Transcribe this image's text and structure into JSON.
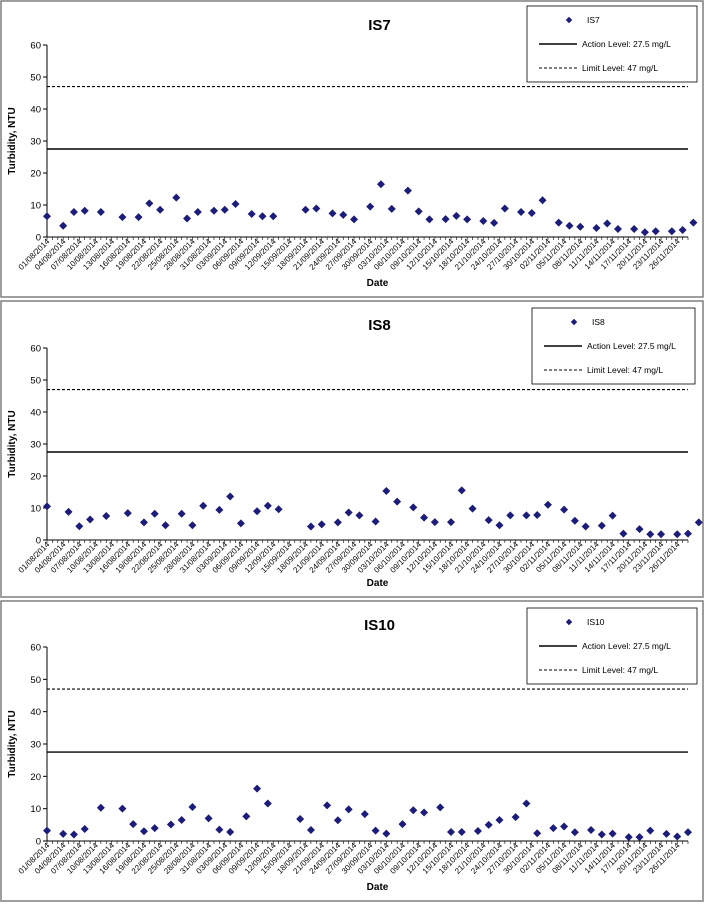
{
  "colors": {
    "marker": "#1c1c7a",
    "line": "#000000",
    "frame": "#7f7f7f",
    "background": "#ffffff"
  },
  "chart_data": [
    {
      "type": "scatter",
      "title": "IS7",
      "xlabel": "Date",
      "ylabel": "Turbidity, NTU",
      "ylim": [
        0,
        60
      ],
      "yticks": [
        0,
        10,
        20,
        30,
        40,
        50,
        60
      ],
      "xlim": [
        "2014-08-01",
        "2014-11-28"
      ],
      "xtick_labels": [
        "01/08/2014",
        "04/08/2014",
        "07/08/2014",
        "10/08/2014",
        "13/08/2014",
        "16/08/2014",
        "19/08/2014",
        "22/08/2014",
        "25/08/2014",
        "28/08/2014",
        "31/08/2014",
        "03/09/2014",
        "06/09/2014",
        "09/09/2014",
        "12/09/2014",
        "15/09/2014",
        "18/09/2014",
        "21/09/2014",
        "24/09/2014",
        "27/09/2014",
        "30/09/2014",
        "03/10/2014",
        "06/10/2014",
        "09/10/2014",
        "12/10/2014",
        "15/10/2014",
        "18/10/2014",
        "21/10/2014",
        "24/10/2014",
        "27/10/2014",
        "30/10/2014",
        "02/11/2014",
        "05/11/2014",
        "08/11/2014",
        "11/11/2014",
        "14/11/2014",
        "17/11/2014",
        "20/11/2014",
        "23/11/2014",
        "26/11/2014"
      ],
      "legend": {
        "position": "top-right",
        "entries": [
          "IS7",
          "Action Level: 27.5 mg/L",
          "Limit Level: 47 mg/L"
        ]
      },
      "reference_lines": [
        {
          "label": "Action Level: 27.5 mg/L",
          "value": 27.5,
          "style": "solid"
        },
        {
          "label": "Limit Level: 47 mg/L",
          "value": 47,
          "style": "dashed"
        }
      ],
      "series": [
        {
          "name": "IS7",
          "points": [
            [
              "2014-08-01",
              6.5
            ],
            [
              "2014-08-04",
              3.5
            ],
            [
              "2014-08-06",
              7.8
            ],
            [
              "2014-08-08",
              8.2
            ],
            [
              "2014-08-11",
              7.8
            ],
            [
              "2014-08-15",
              6.2
            ],
            [
              "2014-08-18",
              6.2
            ],
            [
              "2014-08-20",
              10.5
            ],
            [
              "2014-08-22",
              8.5
            ],
            [
              "2014-08-25",
              12.3
            ],
            [
              "2014-08-27",
              5.8
            ],
            [
              "2014-08-29",
              7.8
            ],
            [
              "2014-09-01",
              8.2
            ],
            [
              "2014-09-03",
              8.5
            ],
            [
              "2014-09-05",
              10.3
            ],
            [
              "2014-09-08",
              7.2
            ],
            [
              "2014-09-10",
              6.5
            ],
            [
              "2014-09-12",
              6.5
            ],
            [
              "2014-09-18",
              8.5
            ],
            [
              "2014-09-20",
              8.9
            ],
            [
              "2014-09-23",
              7.4
            ],
            [
              "2014-09-25",
              6.9
            ],
            [
              "2014-09-27",
              5.5
            ],
            [
              "2014-09-30",
              9.5
            ],
            [
              "2014-10-02",
              16.5
            ],
            [
              "2014-10-04",
              8.8
            ],
            [
              "2014-10-07",
              14.5
            ],
            [
              "2014-10-09",
              8.0
            ],
            [
              "2014-10-11",
              5.5
            ],
            [
              "2014-10-14",
              5.6
            ],
            [
              "2014-10-16",
              6.6
            ],
            [
              "2014-10-18",
              5.5
            ],
            [
              "2014-10-21",
              5.0
            ],
            [
              "2014-10-23",
              4.4
            ],
            [
              "2014-10-25",
              8.9
            ],
            [
              "2014-10-28",
              7.8
            ],
            [
              "2014-10-30",
              7.5
            ],
            [
              "2014-11-01",
              11.5
            ],
            [
              "2014-11-04",
              4.5
            ],
            [
              "2014-11-06",
              3.5
            ],
            [
              "2014-11-08",
              3.2
            ],
            [
              "2014-11-11",
              2.8
            ],
            [
              "2014-11-13",
              4.2
            ],
            [
              "2014-11-15",
              2.5
            ],
            [
              "2014-11-18",
              2.5
            ],
            [
              "2014-11-20",
              1.5
            ],
            [
              "2014-11-22",
              1.8
            ],
            [
              "2014-11-25",
              1.8
            ],
            [
              "2014-11-27",
              2.2
            ],
            [
              "2014-11-29",
              4.5
            ]
          ]
        }
      ]
    },
    {
      "type": "scatter",
      "title": "IS8",
      "xlabel": "Date",
      "ylabel": "Turbidity, NTU",
      "ylim": [
        0,
        60
      ],
      "yticks": [
        0,
        10,
        20,
        30,
        40,
        50,
        60
      ],
      "xlim": [
        "2014-08-01",
        "2014-11-28"
      ],
      "xtick_labels": [
        "01/08/2014",
        "04/08/2014",
        "07/08/2014",
        "10/08/2014",
        "13/08/2014",
        "16/08/2014",
        "19/08/2014",
        "22/08/2014",
        "25/08/2014",
        "28/08/2014",
        "31/08/2014",
        "03/09/2014",
        "06/09/2014",
        "09/09/2014",
        "12/09/2014",
        "15/09/2014",
        "18/09/2014",
        "21/09/2014",
        "24/09/2014",
        "27/09/2014",
        "30/09/2014",
        "03/10/2014",
        "06/10/2014",
        "09/10/2014",
        "12/10/2014",
        "15/10/2014",
        "18/10/2014",
        "21/10/2014",
        "24/10/2014",
        "27/10/2014",
        "30/10/2014",
        "02/11/2014",
        "05/11/2014",
        "08/11/2014",
        "11/11/2014",
        "14/11/2014",
        "17/11/2014",
        "20/11/2014",
        "23/11/2014",
        "26/11/2014"
      ],
      "legend": {
        "position": "top-right",
        "entries": [
          "IS8",
          "Action Level: 27.5 mg/L",
          "Limit Level: 47 mg/L"
        ]
      },
      "reference_lines": [
        {
          "label": "Action Level: 27.5 mg/L",
          "value": 27.5,
          "style": "solid"
        },
        {
          "label": "Limit Level: 47 mg/L",
          "value": 47,
          "style": "dashed"
        }
      ],
      "series": [
        {
          "name": "IS8",
          "points": [
            [
              "2014-08-01",
              10.5
            ],
            [
              "2014-08-05",
              8.8
            ],
            [
              "2014-08-07",
              4.3
            ],
            [
              "2014-08-09",
              6.4
            ],
            [
              "2014-08-12",
              7.5
            ],
            [
              "2014-08-16",
              8.4
            ],
            [
              "2014-08-19",
              5.5
            ],
            [
              "2014-08-21",
              8.2
            ],
            [
              "2014-08-23",
              4.6
            ],
            [
              "2014-08-26",
              8.2
            ],
            [
              "2014-08-28",
              4.6
            ],
            [
              "2014-08-30",
              10.7
            ],
            [
              "2014-09-02",
              9.4
            ],
            [
              "2014-09-04",
              13.6
            ],
            [
              "2014-09-06",
              5.2
            ],
            [
              "2014-09-09",
              9.0
            ],
            [
              "2014-09-11",
              10.7
            ],
            [
              "2014-09-13",
              9.6
            ],
            [
              "2014-09-19",
              4.2
            ],
            [
              "2014-09-21",
              4.9
            ],
            [
              "2014-09-24",
              5.5
            ],
            [
              "2014-09-26",
              8.6
            ],
            [
              "2014-09-28",
              7.7
            ],
            [
              "2014-10-01",
              5.8
            ],
            [
              "2014-10-03",
              15.3
            ],
            [
              "2014-10-05",
              12.0
            ],
            [
              "2014-10-08",
              10.2
            ],
            [
              "2014-10-10",
              7.0
            ],
            [
              "2014-10-12",
              5.6
            ],
            [
              "2014-10-15",
              5.6
            ],
            [
              "2014-10-17",
              15.5
            ],
            [
              "2014-10-19",
              9.8
            ],
            [
              "2014-10-22",
              6.2
            ],
            [
              "2014-10-24",
              4.6
            ],
            [
              "2014-10-26",
              7.7
            ],
            [
              "2014-10-29",
              7.7
            ],
            [
              "2014-10-31",
              7.8
            ],
            [
              "2014-11-02",
              11.0
            ],
            [
              "2014-11-05",
              9.5
            ],
            [
              "2014-11-07",
              6.0
            ],
            [
              "2014-11-09",
              4.2
            ],
            [
              "2014-11-12",
              4.5
            ],
            [
              "2014-11-14",
              7.6
            ],
            [
              "2014-11-16",
              2.0
            ],
            [
              "2014-11-19",
              3.4
            ],
            [
              "2014-11-21",
              1.8
            ],
            [
              "2014-11-23",
              1.8
            ],
            [
              "2014-11-26",
              1.8
            ],
            [
              "2014-11-28",
              2.0
            ],
            [
              "2014-11-30",
              5.5
            ]
          ]
        }
      ]
    },
    {
      "type": "scatter",
      "title": "IS10",
      "xlabel": "Date",
      "ylabel": "Turbidity, NTU",
      "ylim": [
        0,
        60
      ],
      "yticks": [
        0,
        10,
        20,
        30,
        40,
        50,
        60
      ],
      "xlim": [
        "2014-08-01",
        "2014-11-28"
      ],
      "xtick_labels": [
        "01/08/2014",
        "04/08/2014",
        "07/08/2014",
        "10/08/2014",
        "13/08/2014",
        "16/08/2014",
        "19/08/2014",
        "22/08/2014",
        "25/08/2014",
        "28/08/2014",
        "31/08/2014",
        "03/09/2014",
        "06/09/2014",
        "09/09/2014",
        "12/09/2014",
        "15/09/2014",
        "18/09/2014",
        "21/09/2014",
        "24/09/2014",
        "27/09/2014",
        "30/09/2014",
        "03/10/2014",
        "06/10/2014",
        "09/10/2014",
        "12/10/2014",
        "15/10/2014",
        "18/10/2014",
        "21/10/2014",
        "24/10/2014",
        "27/10/2014",
        "30/10/2014",
        "02/11/2014",
        "05/11/2014",
        "08/11/2014",
        "11/11/2014",
        "14/11/2014",
        "17/11/2014",
        "20/11/2014",
        "23/11/2014",
        "26/11/2014"
      ],
      "legend": {
        "position": "top-right",
        "entries": [
          "IS10",
          "Action Level: 27.5 mg/L",
          "Limit Level: 47 mg/L"
        ]
      },
      "reference_lines": [
        {
          "label": "Action Level: 27.5 mg/L",
          "value": 27.5,
          "style": "solid"
        },
        {
          "label": "Limit Level: 47 mg/L",
          "value": 47,
          "style": "dashed"
        }
      ],
      "series": [
        {
          "name": "IS10",
          "points": [
            [
              "2014-08-01",
              3.2
            ],
            [
              "2014-08-04",
              2.2
            ],
            [
              "2014-08-06",
              2.0
            ],
            [
              "2014-08-08",
              3.7
            ],
            [
              "2014-08-11",
              10.3
            ],
            [
              "2014-08-15",
              10.0
            ],
            [
              "2014-08-17",
              5.2
            ],
            [
              "2014-08-19",
              3.0
            ],
            [
              "2014-08-21",
              4.0
            ],
            [
              "2014-08-24",
              5.1
            ],
            [
              "2014-08-26",
              6.5
            ],
            [
              "2014-08-28",
              10.5
            ],
            [
              "2014-08-31",
              7.0
            ],
            [
              "2014-09-02",
              3.5
            ],
            [
              "2014-09-04",
              2.8
            ],
            [
              "2014-09-07",
              7.6
            ],
            [
              "2014-09-09",
              16.2
            ],
            [
              "2014-09-11",
              11.6
            ],
            [
              "2014-09-17",
              6.8
            ],
            [
              "2014-09-19",
              3.4
            ],
            [
              "2014-09-22",
              11.0
            ],
            [
              "2014-09-24",
              6.4
            ],
            [
              "2014-09-26",
              9.8
            ],
            [
              "2014-09-29",
              8.3
            ],
            [
              "2014-10-01",
              3.2
            ],
            [
              "2014-10-03",
              2.3
            ],
            [
              "2014-10-06",
              5.2
            ],
            [
              "2014-10-08",
              9.5
            ],
            [
              "2014-10-10",
              8.8
            ],
            [
              "2014-10-13",
              10.4
            ],
            [
              "2014-10-15",
              2.8
            ],
            [
              "2014-10-17",
              2.8
            ],
            [
              "2014-10-20",
              3.1
            ],
            [
              "2014-10-22",
              5.0
            ],
            [
              "2014-10-24",
              6.5
            ],
            [
              "2014-10-27",
              7.4
            ],
            [
              "2014-10-29",
              11.6
            ],
            [
              "2014-10-31",
              2.4
            ],
            [
              "2014-11-03",
              4.0
            ],
            [
              "2014-11-05",
              4.5
            ],
            [
              "2014-11-07",
              2.7
            ],
            [
              "2014-11-10",
              3.4
            ],
            [
              "2014-11-12",
              2.0
            ],
            [
              "2014-11-14",
              2.3
            ],
            [
              "2014-11-17",
              1.2
            ],
            [
              "2014-11-19",
              1.2
            ],
            [
              "2014-11-21",
              3.2
            ],
            [
              "2014-11-24",
              2.2
            ],
            [
              "2014-11-26",
              1.4
            ],
            [
              "2014-11-28",
              2.7
            ]
          ]
        }
      ]
    }
  ]
}
